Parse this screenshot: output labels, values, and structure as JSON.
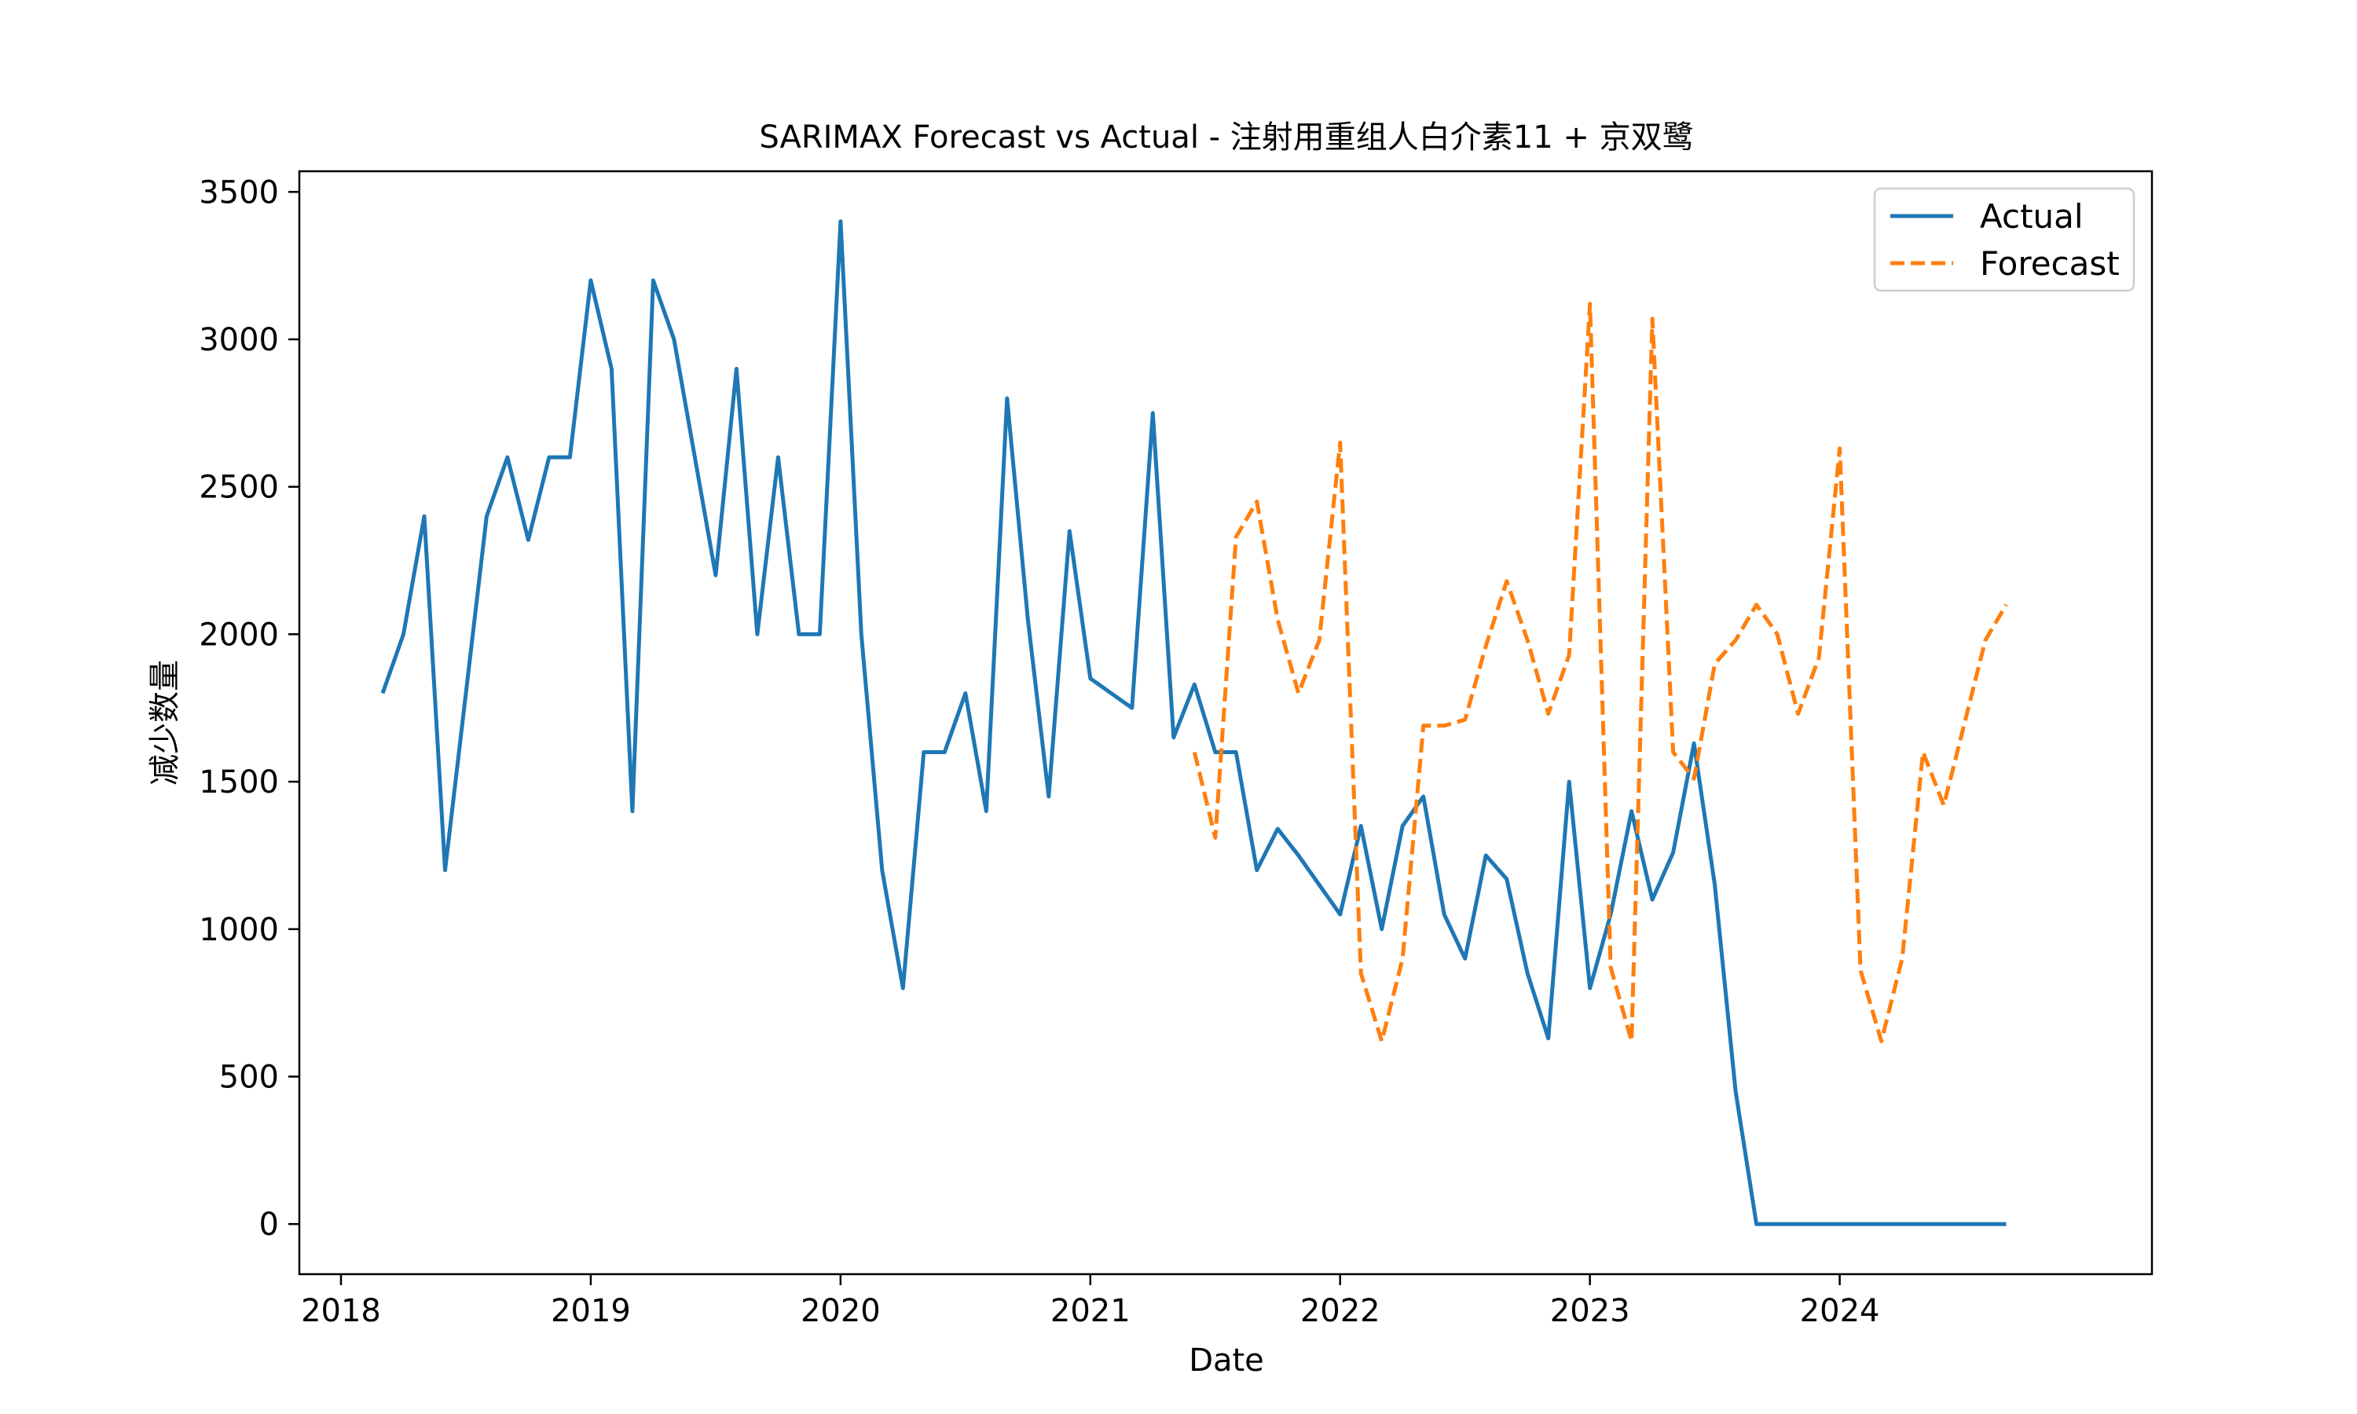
{
  "chart_data": {
    "type": "line",
    "title": "SARIMAX Forecast vs Actual - 注射用重组人白介素11 + 京双鹭",
    "xlabel": "Date",
    "ylabel": "减少数量",
    "xlim": [
      "2017-11",
      "2025-04"
    ],
    "ylim": [
      -170,
      3570
    ],
    "x_ticks": [
      "2018",
      "2019",
      "2020",
      "2021",
      "2022",
      "2023",
      "2024"
    ],
    "y_ticks": [
      0,
      500,
      1000,
      1500,
      2000,
      2500,
      3000,
      3500
    ],
    "grid": false,
    "legend_position": "top-right",
    "series": [
      {
        "name": "Actual",
        "color": "#1f77b4",
        "style": "solid",
        "x": [
          "2018-03",
          "2018-04",
          "2018-05",
          "2018-06",
          "2018-07",
          "2018-08",
          "2018-09",
          "2018-10",
          "2018-11",
          "2018-12",
          "2019-01",
          "2019-02",
          "2019-03",
          "2019-04",
          "2019-05",
          "2019-06",
          "2019-07",
          "2019-08",
          "2019-09",
          "2019-10",
          "2019-11",
          "2019-12",
          "2020-01",
          "2020-02",
          "2020-03",
          "2020-04",
          "2020-05",
          "2020-06",
          "2020-07",
          "2020-08",
          "2020-09",
          "2020-10",
          "2020-11",
          "2020-12",
          "2021-01",
          "2021-02",
          "2021-03",
          "2021-04",
          "2021-05",
          "2021-06",
          "2021-07",
          "2021-08",
          "2021-09",
          "2021-10",
          "2021-11",
          "2021-12",
          "2022-01",
          "2022-02",
          "2022-03",
          "2022-04",
          "2022-05",
          "2022-06",
          "2022-07",
          "2022-08",
          "2022-09",
          "2022-10",
          "2022-11",
          "2022-12",
          "2023-01",
          "2023-02",
          "2023-03",
          "2023-04",
          "2023-05",
          "2023-06",
          "2023-07",
          "2023-08",
          "2023-09",
          "2023-10",
          "2023-11",
          "2023-12",
          "2024-01",
          "2024-02",
          "2024-03",
          "2024-04",
          "2024-05",
          "2024-06",
          "2024-07",
          "2024-08",
          "2024-09"
        ],
        "values": [
          1800,
          2000,
          2400,
          1200,
          1800,
          2400,
          2600,
          2320,
          2600,
          2600,
          3200,
          2900,
          1400,
          3200,
          3000,
          2600,
          2200,
          2900,
          2000,
          2600,
          2000,
          2000,
          3400,
          2000,
          1200,
          800,
          1600,
          1600,
          1800,
          1400,
          2800,
          2050,
          1450,
          2350,
          1850,
          1800,
          1750,
          2750,
          1650,
          1830,
          1600,
          1600,
          1200,
          1340,
          1250,
          1150,
          1050,
          1350,
          1000,
          1350,
          1450,
          1050,
          900,
          1250,
          1170,
          850,
          630,
          1500,
          800,
          1050,
          1400,
          1100,
          1260,
          1630,
          1150,
          450,
          0,
          0,
          0,
          0,
          0,
          0,
          0,
          0,
          0,
          0,
          0,
          0,
          0
        ]
      },
      {
        "name": "Forecast",
        "color": "#ff7f0e",
        "style": "dashed",
        "x": [
          "2021-06",
          "2021-07",
          "2021-08",
          "2021-09",
          "2021-10",
          "2021-11",
          "2021-12",
          "2022-01",
          "2022-02",
          "2022-03",
          "2022-04",
          "2022-05",
          "2022-06",
          "2022-07",
          "2022-08",
          "2022-09",
          "2022-10",
          "2022-11",
          "2022-12",
          "2023-01",
          "2023-02",
          "2023-03",
          "2023-04",
          "2023-05",
          "2023-06",
          "2023-07",
          "2023-08",
          "2023-09",
          "2023-10",
          "2023-11",
          "2023-12",
          "2024-01",
          "2024-02",
          "2024-03",
          "2024-04",
          "2024-05",
          "2024-06",
          "2024-07",
          "2024-08",
          "2024-09"
        ],
        "values": [
          1600,
          1310,
          2330,
          2450,
          2050,
          1800,
          1980,
          2650,
          850,
          620,
          900,
          1690,
          1690,
          1710,
          1960,
          2180,
          1980,
          1730,
          1930,
          3120,
          870,
          620,
          3070,
          1600,
          1510,
          1900,
          1980,
          2100,
          2000,
          1730,
          1920,
          2630,
          860,
          620,
          900,
          1600,
          1420,
          1700,
          1980,
          2100
        ]
      }
    ]
  }
}
